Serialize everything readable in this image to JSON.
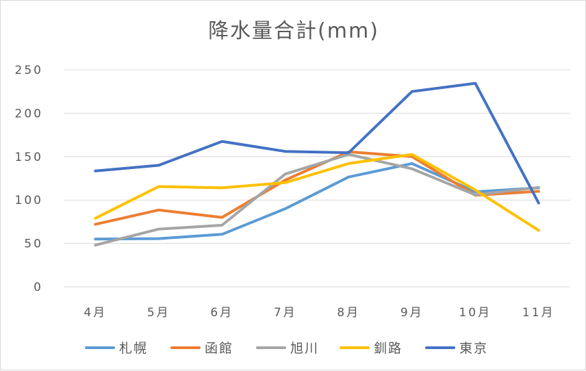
{
  "chart_data": {
    "type": "line",
    "title": "降水量合計(mm)",
    "xlabel": "",
    "ylabel": "",
    "categories": [
      "4月",
      "5月",
      "6月",
      "7月",
      "8月",
      "9月",
      "10月",
      "11月"
    ],
    "ylim": [
      0,
      250
    ],
    "yticks": [
      0,
      50,
      100,
      150,
      200,
      250
    ],
    "grid": true,
    "legend_position": "bottom",
    "series": [
      {
        "name": "札幌",
        "color": "#5B9BD5",
        "values": [
          55,
          55.5,
          60.5,
          90,
          126.5,
          142,
          109.5,
          114
        ]
      },
      {
        "name": "函館",
        "color": "#ED7D31",
        "values": [
          72,
          88.5,
          80,
          123,
          155.5,
          150,
          105.5,
          110
        ]
      },
      {
        "name": "旭川",
        "color": "#A5A5A5",
        "values": [
          48,
          66.5,
          71,
          130,
          152.5,
          136,
          106,
          114.5
        ]
      },
      {
        "name": "釧路",
        "color": "#FFC000",
        "values": [
          79,
          115.5,
          114,
          120,
          142,
          152.5,
          111.5,
          65
        ]
      },
      {
        "name": "東京",
        "color": "#4472C4",
        "values": [
          133.5,
          140,
          167.5,
          156,
          154.5,
          225,
          234.5,
          96.5
        ]
      }
    ]
  }
}
